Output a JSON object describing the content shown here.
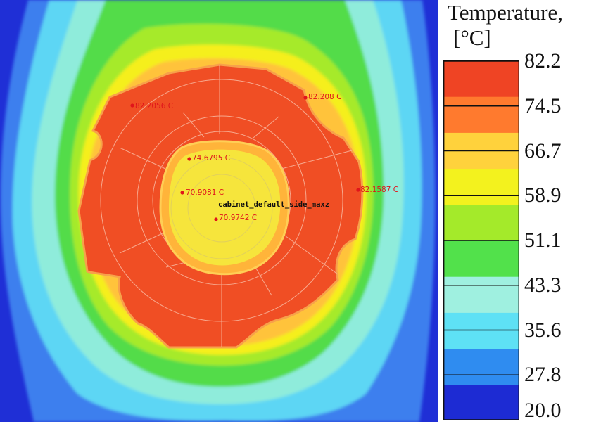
{
  "chart_data": {
    "type": "heatmap",
    "title": "Temperature, [°C]",
    "legend": {
      "title_line1": "Temperature,",
      "title_line2": "[°C]",
      "ticks": [
        "82.2",
        "74.5",
        "66.7",
        "58.9",
        "51.1",
        "43.3",
        "35.6",
        "27.8",
        "20.0"
      ],
      "min": 20.0,
      "max": 82.2,
      "colors": [
        "#1d2bd3",
        "#2f8cf0",
        "#5ee1f5",
        "#9ff0e0",
        "#52e14b",
        "#a4ea2a",
        "#f3f21e",
        "#ffd23c",
        "#ff7a2e",
        "#ef4424"
      ]
    },
    "probes": [
      {
        "label": "82.2056 C",
        "value": 82.2056
      },
      {
        "label": "82.208 C",
        "value": 82.208
      },
      {
        "label": "74.6795 C",
        "value": 74.6795
      },
      {
        "label": "70.9081 C",
        "value": 70.9081
      },
      {
        "label": "82.1587 C",
        "value": 82.1587
      },
      {
        "label": "70.9742 C",
        "value": 70.9742
      }
    ],
    "component_label": "cabinet_default_side_maxz"
  }
}
